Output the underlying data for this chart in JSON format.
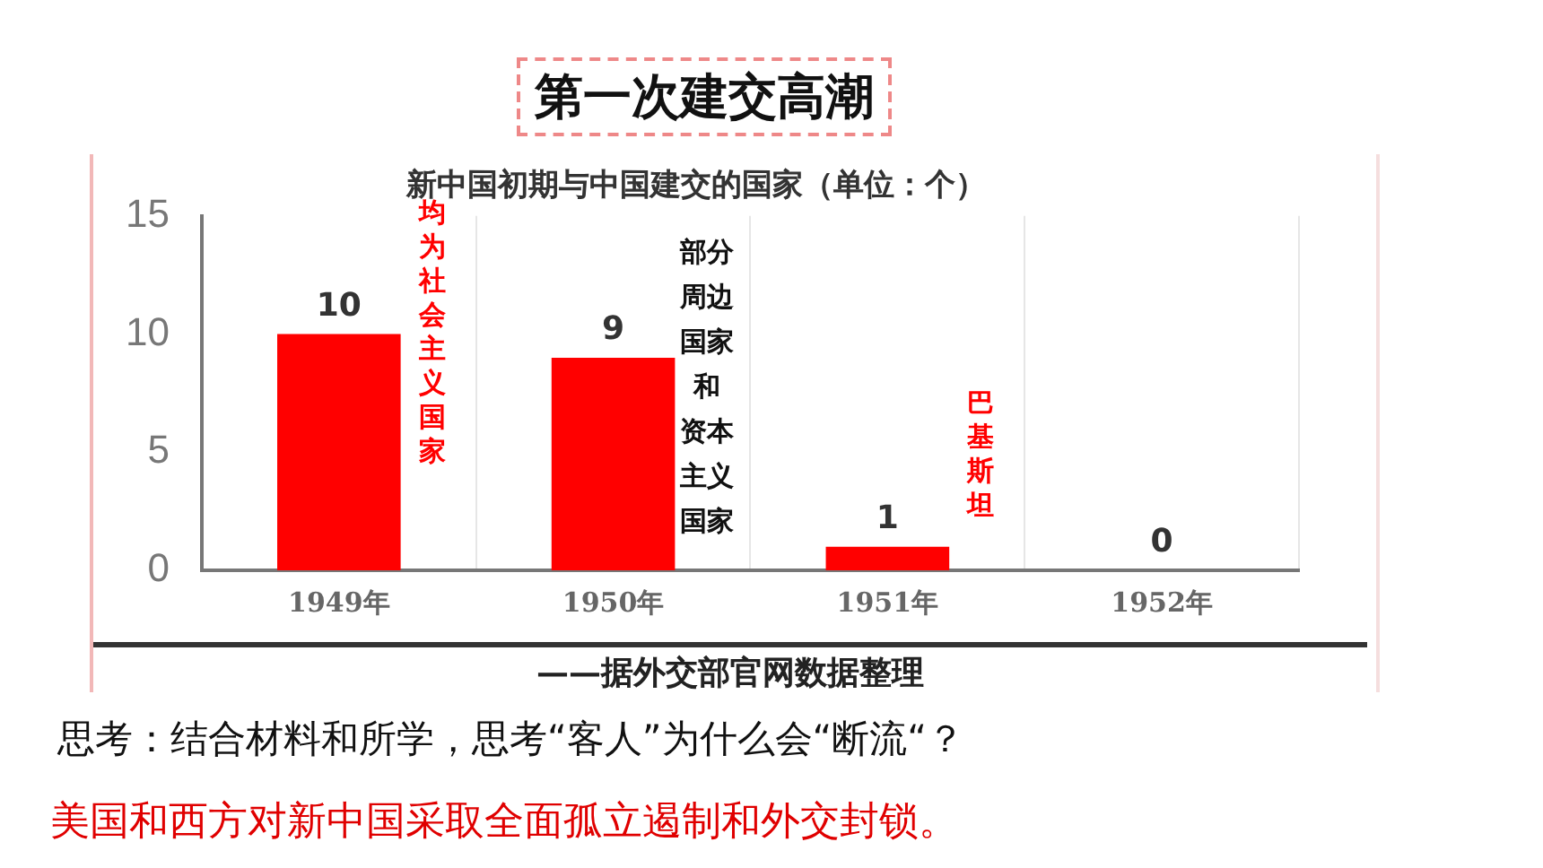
{
  "chart_data": {
    "type": "bar",
    "title": "第一次建交高潮",
    "subtitle": "新中国初期与中国建交的国家（单位：个）",
    "categories": [
      "1949年",
      "1950年",
      "1951年",
      "1952年"
    ],
    "values": [
      10,
      9,
      1,
      0
    ],
    "color": "#ff0000",
    "ylim": [
      0,
      15
    ],
    "yticks": [
      0,
      5,
      10,
      15
    ],
    "grid": "x",
    "legend": false,
    "data_labels": true,
    "annotations": [
      "均为社会主义国家",
      "部分周边国家和资本主义国家",
      "巴基斯坦",
      "——据外交部官网数据整理",
      "思考：结合材料和所学，思考“客人”为什么会“断流“？",
      "美国和西方对新中国采取全面孤立遏制和外交封锁。"
    ]
  }
}
